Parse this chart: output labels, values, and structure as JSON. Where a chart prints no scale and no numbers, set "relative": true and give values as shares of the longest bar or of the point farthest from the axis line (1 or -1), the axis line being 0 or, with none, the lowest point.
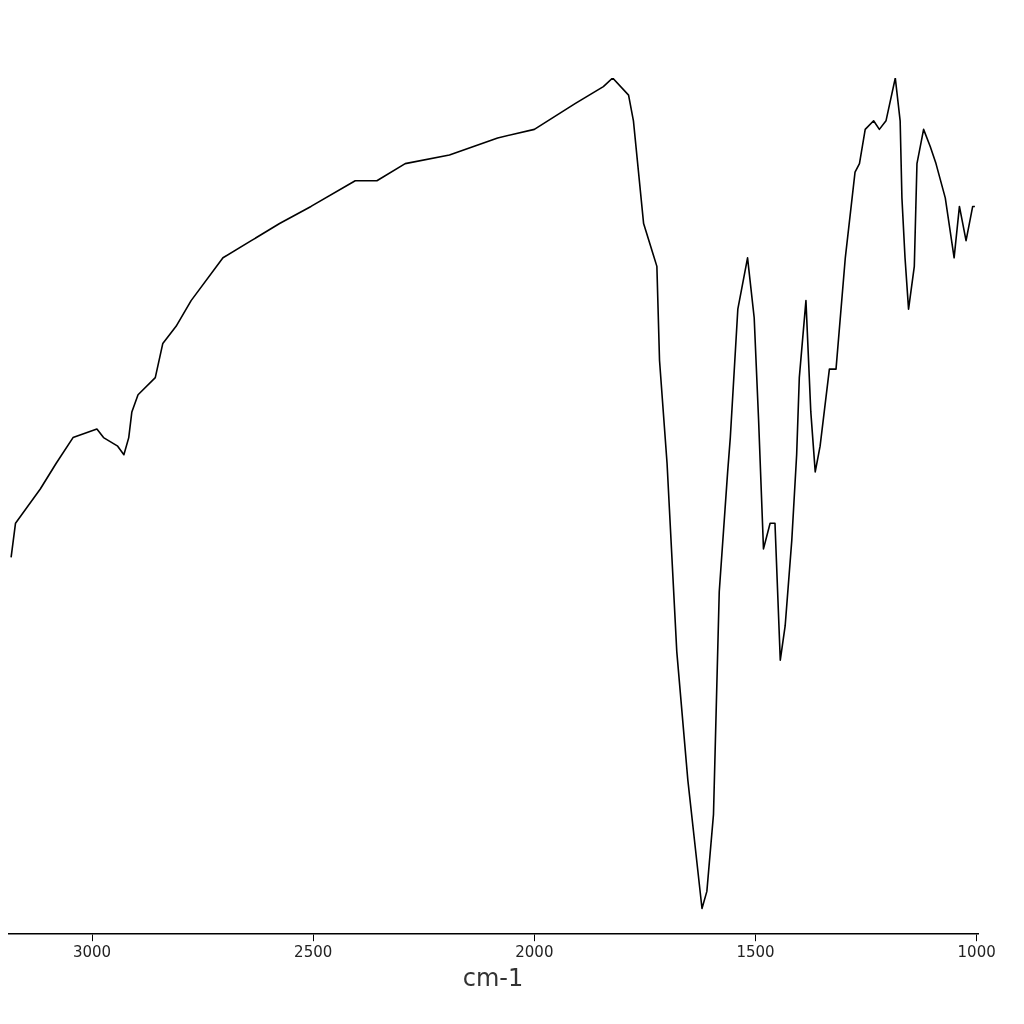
{
  "chart_data": {
    "type": "line",
    "xlabel": "cm-1",
    "relative": true,
    "xlim": [
      3190,
      997
    ],
    "xticks": [
      3000,
      2500,
      2000,
      1500,
      1000
    ],
    "marker": "none",
    "line_style": "solid",
    "series": [
      {
        "color": "#000000",
        "x": [
          3183,
          3173,
          3117,
          3081,
          3043,
          2989,
          2974,
          2942,
          2928,
          2917,
          2910,
          2896,
          2857,
          2840,
          2810,
          2776,
          2704,
          2640,
          2576,
          2505,
          2405,
          2356,
          2292,
          2192,
          2083,
          2000,
          1908,
          1844,
          1823,
          1787,
          1776,
          1753,
          1723,
          1717,
          1700,
          1678,
          1653,
          1621,
          1610,
          1595,
          1582,
          1563,
          1557,
          1540,
          1518,
          1503,
          1493,
          1482,
          1467,
          1456,
          1444,
          1433,
          1418,
          1407,
          1401,
          1386,
          1375,
          1365,
          1354,
          1333,
          1318,
          1297,
          1275,
          1265,
          1252,
          1233,
          1220,
          1205,
          1184,
          1173,
          1169,
          1162,
          1154,
          1141,
          1135,
          1120,
          1105,
          1092,
          1071,
          1051,
          1039,
          1024,
          1009,
          1004
        ],
        "values": [
          0.44,
          0.48,
          0.52,
          0.55,
          0.58,
          0.59,
          0.58,
          0.57,
          0.56,
          0.58,
          0.61,
          0.63,
          0.65,
          0.69,
          0.71,
          0.74,
          0.79,
          0.81,
          0.83,
          0.85,
          0.88,
          0.88,
          0.9,
          0.91,
          0.93,
          0.94,
          0.97,
          0.99,
          1.0,
          0.98,
          0.95,
          0.83,
          0.78,
          0.67,
          0.55,
          0.33,
          0.18,
          0.03,
          0.05,
          0.14,
          0.4,
          0.54,
          0.58,
          0.73,
          0.79,
          0.72,
          0.6,
          0.45,
          0.48,
          0.48,
          0.32,
          0.36,
          0.46,
          0.56,
          0.65,
          0.74,
          0.61,
          0.54,
          0.57,
          0.66,
          0.66,
          0.79,
          0.89,
          0.9,
          0.94,
          0.95,
          0.94,
          0.95,
          1.0,
          0.95,
          0.86,
          0.79,
          0.73,
          0.78,
          0.9,
          0.94,
          0.92,
          0.9,
          0.86,
          0.79,
          0.85,
          0.81,
          0.85,
          0.85
        ]
      }
    ]
  }
}
